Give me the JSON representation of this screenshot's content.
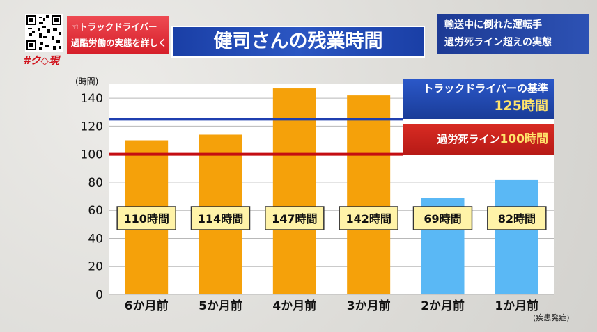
{
  "header": {
    "hashtag": "#ク◇現",
    "red_box": {
      "line1": "☜トラックドライバー",
      "line2": "過酷労働の実態を詳しく"
    },
    "title": "健司さんの残業時間",
    "right_box": {
      "line1": "輸送中に倒れた運転手",
      "line2": "過労死ライン超えの実態"
    }
  },
  "note": "(疾患発症)",
  "colors": {
    "bar_orange": "#f5a10a",
    "bar_blue": "#5ab8f5",
    "line_blue": "#1f3fb0",
    "line_red": "#c40d12",
    "label_fill": "#fff3a8"
  },
  "annotations": {
    "driver_standard": {
      "line1": "トラックドライバーの基準",
      "line2": "125時間",
      "value": 125
    },
    "karoshi_line": {
      "prefix": "過労死ライン",
      "value_text": "100時間",
      "value": 100
    }
  },
  "chart_data": {
    "type": "bar",
    "ylabel": "(時間)",
    "ylim": [
      0,
      150
    ],
    "yticks": [
      0,
      20,
      40,
      60,
      80,
      100,
      120,
      140
    ],
    "grid": true,
    "categories": [
      "6か月前",
      "5か月前",
      "4か月前",
      "3か月前",
      "2か月前",
      "1か月前"
    ],
    "values": [
      110,
      114,
      147,
      142,
      69,
      82
    ],
    "data_labels": [
      "110時間",
      "114時間",
      "147時間",
      "142時間",
      "69時間",
      "82時間"
    ],
    "bar_colors": [
      "orange",
      "orange",
      "orange",
      "orange",
      "blue",
      "blue"
    ]
  }
}
